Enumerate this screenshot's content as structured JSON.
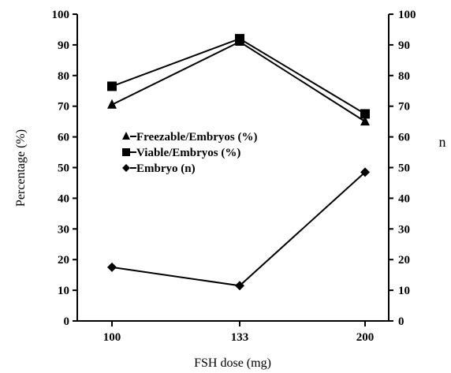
{
  "chart_data": {
    "type": "line",
    "categories": [
      "100",
      "133",
      "200"
    ],
    "xlabel": "FSH dose (mg)",
    "ylabel": "Percentage (%)",
    "y2label": "n",
    "ylim": [
      0,
      100
    ],
    "y2lim": [
      0,
      100
    ],
    "yticks": [
      "0",
      "10",
      "20",
      "30",
      "40",
      "50",
      "60",
      "70",
      "80",
      "90",
      "100"
    ],
    "y2ticks": [
      "0",
      "10",
      "20",
      "30",
      "40",
      "50",
      "60",
      "70",
      "80",
      "90",
      "100"
    ],
    "grid": false,
    "legend_position": "center-left",
    "series": [
      {
        "name": "Freezable/Embryos (%)",
        "marker": "triangle",
        "axis": "left",
        "values": [
          70.5,
          91,
          65
        ]
      },
      {
        "name": "Viable/Embryos (%)",
        "marker": "square",
        "axis": "left",
        "values": [
          76.5,
          92,
          67.5
        ]
      },
      {
        "name": "Embryo (n)",
        "marker": "diamond",
        "axis": "right",
        "values": [
          17.5,
          11.5,
          48.5
        ]
      }
    ],
    "line_color": "#000000"
  }
}
